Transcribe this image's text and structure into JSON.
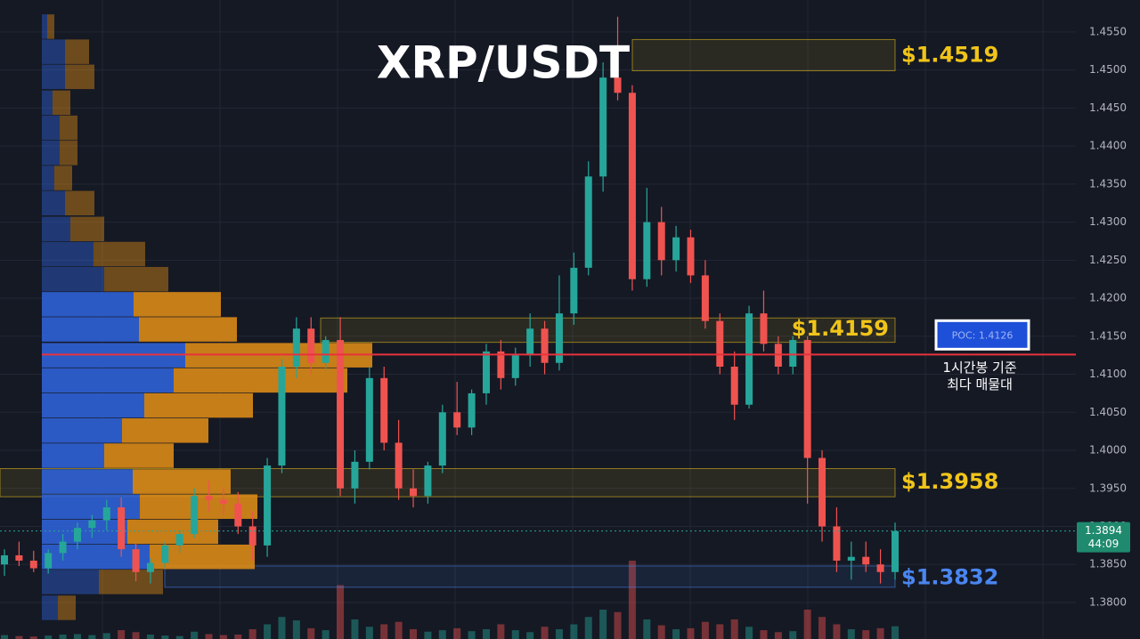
{
  "chart_data": {
    "type": "candlestick",
    "title": "XRP/USDT",
    "ylim": [
      1.3752,
      1.4592
    ],
    "yticks": [
      {
        "value": 1.38,
        "label": "1.3800"
      },
      {
        "value": 1.385,
        "label": "1.3850"
      },
      {
        "value": 1.39,
        "label": "1.3900"
      },
      {
        "value": 1.395,
        "label": "1.3950"
      },
      {
        "value": 1.4,
        "label": "1.4000"
      },
      {
        "value": 1.405,
        "label": "1.4050"
      },
      {
        "value": 1.41,
        "label": "1.4100"
      },
      {
        "value": 1.415,
        "label": "1.4150"
      },
      {
        "value": 1.42,
        "label": "1.4200"
      },
      {
        "value": 1.425,
        "label": "1.4250"
      },
      {
        "value": 1.43,
        "label": "1.4300"
      },
      {
        "value": 1.435,
        "label": "1.4350"
      },
      {
        "value": 1.44,
        "label": "1.4400"
      },
      {
        "value": 1.445,
        "label": "1.4450"
      },
      {
        "value": 1.45,
        "label": "1.4500"
      },
      {
        "value": 1.455,
        "label": "1.4550"
      }
    ],
    "grid": true,
    "up_color": "#26a69a",
    "down_color": "#ef5350",
    "open": [
      1.385,
      1.3862,
      1.3855,
      1.3845,
      1.3865,
      1.388,
      1.3898,
      1.3908,
      1.3925,
      1.387,
      1.384,
      1.3852,
      1.3875,
      1.389,
      1.394,
      1.3935,
      1.393,
      1.39,
      1.3875,
      1.398,
      1.411,
      1.416,
      1.4115,
      1.4145,
      1.395,
      1.3985,
      1.4095,
      1.401,
      1.395,
      1.394,
      1.398,
      1.405,
      1.403,
      1.4075,
      1.413,
      1.4095,
      1.4125,
      1.416,
      1.4115,
      1.418,
      1.424,
      1.436,
      1.449,
      1.447,
      1.4225,
      1.43,
      1.425,
      1.428,
      1.423,
      1.417,
      1.411,
      1.406,
      1.418,
      1.414,
      1.411,
      1.4145,
      1.399,
      1.39,
      1.3855,
      1.386,
      1.385,
      1.384
    ],
    "high": [
      1.387,
      1.388,
      1.3868,
      1.387,
      1.389,
      1.3905,
      1.3915,
      1.3935,
      1.3938,
      1.3878,
      1.3858,
      1.388,
      1.3895,
      1.395,
      1.396,
      1.395,
      1.3945,
      1.392,
      1.399,
      1.412,
      1.4175,
      1.4175,
      1.415,
      1.4175,
      1.4,
      1.411,
      1.411,
      1.404,
      1.3975,
      1.3985,
      1.406,
      1.409,
      1.408,
      1.414,
      1.4145,
      1.4135,
      1.418,
      1.417,
      1.423,
      1.426,
      1.438,
      1.451,
      1.457,
      1.448,
      1.4345,
      1.432,
      1.4295,
      1.429,
      1.425,
      1.418,
      1.413,
      1.419,
      1.421,
      1.415,
      1.415,
      1.415,
      1.4,
      1.3925,
      1.388,
      1.388,
      1.387,
      1.3905
    ],
    "low": [
      1.3835,
      1.3848,
      1.384,
      1.3838,
      1.3855,
      1.387,
      1.3885,
      1.3895,
      1.386,
      1.3828,
      1.3825,
      1.3845,
      1.3865,
      1.3885,
      1.392,
      1.3915,
      1.389,
      1.3855,
      1.386,
      1.397,
      1.4095,
      1.41,
      1.4105,
      1.394,
      1.393,
      1.3975,
      1.4,
      1.3935,
      1.3925,
      1.393,
      1.397,
      1.402,
      1.402,
      1.406,
      1.408,
      1.4085,
      1.411,
      1.41,
      1.4105,
      1.4165,
      1.423,
      1.434,
      1.446,
      1.421,
      1.4215,
      1.423,
      1.4235,
      1.422,
      1.416,
      1.41,
      1.404,
      1.4055,
      1.413,
      1.41,
      1.41,
      1.393,
      1.388,
      1.384,
      1.383,
      1.384,
      1.3825,
      1.383
    ],
    "close": [
      1.3862,
      1.3855,
      1.3845,
      1.3865,
      1.388,
      1.3898,
      1.3908,
      1.3925,
      1.387,
      1.384,
      1.3852,
      1.3875,
      1.389,
      1.394,
      1.3935,
      1.393,
      1.39,
      1.3875,
      1.398,
      1.411,
      1.416,
      1.4115,
      1.4145,
      1.395,
      1.3985,
      1.4095,
      1.401,
      1.395,
      1.394,
      1.398,
      1.405,
      1.403,
      1.4075,
      1.413,
      1.4095,
      1.4125,
      1.416,
      1.4115,
      1.418,
      1.424,
      1.436,
      1.449,
      1.447,
      1.4225,
      1.43,
      1.425,
      1.428,
      1.423,
      1.417,
      1.411,
      1.406,
      1.418,
      1.414,
      1.411,
      1.4145,
      1.399,
      1.39,
      1.3855,
      1.386,
      1.385,
      1.384,
      1.3894
    ],
    "volume": [
      8,
      6,
      5,
      7,
      9,
      10,
      8,
      12,
      18,
      14,
      9,
      7,
      6,
      15,
      10,
      8,
      9,
      20,
      30,
      45,
      38,
      22,
      18,
      110,
      40,
      25,
      30,
      35,
      20,
      15,
      18,
      22,
      16,
      20,
      30,
      18,
      14,
      25,
      20,
      30,
      45,
      60,
      55,
      160,
      40,
      28,
      20,
      22,
      35,
      30,
      40,
      25,
      18,
      14,
      16,
      60,
      45,
      30,
      20,
      18,
      22,
      26
    ],
    "volume_profile": {
      "levels": [
        1.4557,
        1.4524,
        1.4491,
        1.4457,
        1.4424,
        1.4391,
        1.4358,
        1.4325,
        1.4291,
        1.4258,
        1.4225,
        1.4192,
        1.4159,
        1.4125,
        1.4092,
        1.4059,
        1.4026,
        1.3993,
        1.3959,
        1.3926,
        1.3893,
        1.386,
        1.3827,
        1.3793
      ],
      "buy": [
        6,
        26,
        26,
        12,
        20,
        20,
        14,
        26,
        32,
        58,
        70,
        103,
        109,
        161,
        148,
        115,
        90,
        70,
        102,
        110,
        96,
        121,
        64,
        18
      ],
      "sell": [
        8,
        27,
        33,
        20,
        20,
        20,
        20,
        33,
        38,
        58,
        72,
        98,
        110,
        210,
        195,
        122,
        97,
        78,
        110,
        132,
        102,
        118,
        72,
        20
      ],
      "buy_color": "#2f62d6",
      "sell_color": "#d98a17"
    },
    "zones": [
      {
        "label": "$1.4519",
        "value": 1.4519,
        "low": 1.4499,
        "high": 1.454,
        "color": "#f0c419"
      },
      {
        "label": "$1.4159",
        "value": 1.4159,
        "low": 1.4142,
        "high": 1.4174,
        "color": "#f0c419"
      },
      {
        "label": "$1.3958",
        "value": 1.3958,
        "low": 1.3939,
        "high": 1.3976,
        "color": "#f0c419"
      },
      {
        "label": "$1.3832",
        "value": 1.3832,
        "low": 1.382,
        "high": 1.3848,
        "color": "#4a86f0"
      }
    ],
    "poc": {
      "label": "POC: 1.4126",
      "value": 1.4126,
      "color": "#e8323c"
    },
    "poc_note": [
      "1시간봉 기준",
      "최다 매물대"
    ],
    "last_price": 1.3894,
    "countdown": "44:09"
  }
}
